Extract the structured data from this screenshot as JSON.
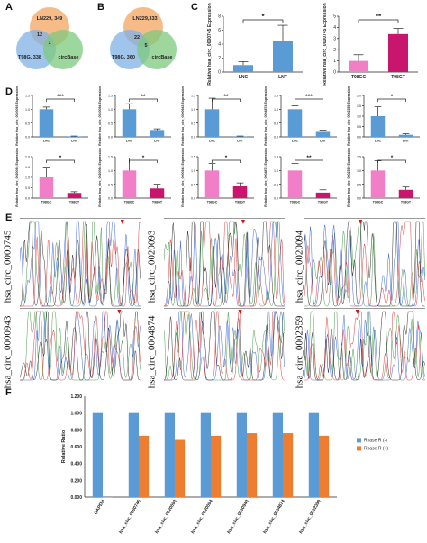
{
  "panels": {
    "A": "A",
    "B": "B",
    "C": "C",
    "D": "D",
    "E": "E",
    "F": "F"
  },
  "venn_a": {
    "top": "LN229, 349",
    "left": "T98G, 338",
    "right": "circBase",
    "n12": "12",
    "n1": "1"
  },
  "venn_b": {
    "top": "LN229,333",
    "left": "T98G, 360",
    "right": "circBase",
    "n22": "22",
    "n5": "5"
  },
  "colors": {
    "blue": "#5b9bd5",
    "pink": "#f07fc7",
    "magenta": "#c8166f",
    "orange": "#ed7d31",
    "fblue": "#5b9bd5",
    "venn_top": "#f4a460",
    "venn_left": "#7fb2e5",
    "venn_right": "#7ec97e"
  },
  "chart_data": [
    {
      "type": "bar",
      "id": "C1",
      "categories": [
        "LNC",
        "LNT"
      ],
      "values": [
        1.0,
        4.5
      ],
      "errors": [
        0.5,
        2.2
      ],
      "ylim": [
        0,
        8
      ],
      "yticks": [
        0,
        2,
        4,
        6,
        8
      ],
      "ylabel": "Relative hsa_circ_0000745 Expression",
      "sig": "*",
      "colors": [
        "#5b9bd5",
        "#5b9bd5"
      ]
    },
    {
      "type": "bar",
      "id": "C2",
      "categories": [
        "T98GC",
        "T98GT"
      ],
      "values": [
        1.0,
        3.4
      ],
      "errors": [
        0.55,
        0.5
      ],
      "ylim": [
        0,
        5
      ],
      "yticks": [
        0,
        1,
        2,
        3,
        4,
        5
      ],
      "ylabel": "Relative hsa_circ_0000745 Expression",
      "sig": "**",
      "colors": [
        "#f07fc7",
        "#c8166f"
      ]
    },
    {
      "type": "bar",
      "id": "D1",
      "categories": [
        "LNC",
        "LNT"
      ],
      "values": [
        1.0,
        0.02
      ],
      "errors": [
        0.08,
        0.01
      ],
      "ylim": [
        0,
        1.5
      ],
      "yticks": [
        0.0,
        0.5,
        1.0,
        1.5
      ],
      "ylabel": "Relative hsa_circ_0020093 Expression",
      "sig": "***",
      "colors": [
        "#5b9bd5",
        "#5b9bd5"
      ]
    },
    {
      "type": "bar",
      "id": "D2",
      "categories": [
        "LNC",
        "LNT"
      ],
      "values": [
        1.0,
        0.25
      ],
      "errors": [
        0.2,
        0.04
      ],
      "ylim": [
        0,
        1.5
      ],
      "yticks": [
        0.0,
        0.5,
        1.0,
        1.5
      ],
      "ylabel": "Relative hsa_circ_0020094 Expression",
      "sig": "**",
      "colors": [
        "#5b9bd5",
        "#5b9bd5"
      ]
    },
    {
      "type": "bar",
      "id": "D3",
      "categories": [
        "LNC",
        "LNT"
      ],
      "values": [
        1.0,
        0.02
      ],
      "errors": [
        0.4,
        0.01
      ],
      "ylim": [
        0,
        1.5
      ],
      "yticks": [
        0.0,
        0.5,
        1.0,
        1.5
      ],
      "ylabel": "Relative hsa_circ_0000943 Expression",
      "sig": "**",
      "colors": [
        "#5b9bd5",
        "#5b9bd5"
      ]
    },
    {
      "type": "bar",
      "id": "D4",
      "categories": [
        "LNC",
        "LNT"
      ],
      "values": [
        1.0,
        0.18
      ],
      "errors": [
        0.12,
        0.06
      ],
      "ylim": [
        0,
        1.5
      ],
      "yticks": [
        0.0,
        0.5,
        1.0,
        1.5
      ],
      "ylabel": "Relative hsa_circ_0004874 Expression",
      "sig": "***",
      "colors": [
        "#5b9bd5",
        "#5b9bd5"
      ]
    },
    {
      "type": "bar",
      "id": "D5",
      "categories": [
        "LNC",
        "LNT"
      ],
      "values": [
        1.0,
        0.1
      ],
      "errors": [
        0.45,
        0.05
      ],
      "ylim": [
        0,
        2.0
      ],
      "yticks": [
        0.0,
        0.5,
        1.0,
        1.5,
        2.0
      ],
      "ylabel": "Relative hsa_circ_0002359 Expression",
      "sig": "*",
      "colors": [
        "#5b9bd5",
        "#5b9bd5"
      ]
    },
    {
      "type": "bar",
      "id": "D6",
      "categories": [
        "T98GC",
        "T98GT"
      ],
      "values": [
        1.0,
        0.25
      ],
      "errors": [
        0.45,
        0.06
      ],
      "ylim": [
        0,
        2.0
      ],
      "yticks": [
        0.0,
        0.5,
        1.0,
        1.5,
        2.0
      ],
      "ylabel": "Relative hsa_circ_0020093 Expression",
      "sig": "*",
      "colors": [
        "#f07fc7",
        "#c8166f"
      ]
    },
    {
      "type": "bar",
      "id": "D7",
      "categories": [
        "T98GC",
        "T98GT"
      ],
      "values": [
        1.0,
        0.35
      ],
      "errors": [
        0.45,
        0.15
      ],
      "ylim": [
        0,
        1.5
      ],
      "yticks": [
        0.0,
        0.5,
        1.0,
        1.5
      ],
      "ylabel": "Relative hsa_circ_0020094 Expression",
      "sig": "*",
      "colors": [
        "#f07fc7",
        "#c8166f"
      ]
    },
    {
      "type": "bar",
      "id": "D8",
      "categories": [
        "T98GC",
        "T98GT"
      ],
      "values": [
        1.0,
        0.45
      ],
      "errors": [
        0.25,
        0.1
      ],
      "ylim": [
        0,
        1.5
      ],
      "yticks": [
        0.0,
        0.5,
        1.0,
        1.5
      ],
      "ylabel": "Relative hsa_circ_0000943 Expression",
      "sig": "*",
      "colors": [
        "#f07fc7",
        "#c8166f"
      ]
    },
    {
      "type": "bar",
      "id": "D9",
      "categories": [
        "T98GC",
        "T98GT"
      ],
      "values": [
        1.0,
        0.2
      ],
      "errors": [
        0.25,
        0.1
      ],
      "ylim": [
        0,
        1.5
      ],
      "yticks": [
        0.0,
        0.5,
        1.0,
        1.5
      ],
      "ylabel": "Relative hsa_circ_0004874 Expression",
      "sig": "**",
      "colors": [
        "#f07fc7",
        "#c8166f"
      ]
    },
    {
      "type": "bar",
      "id": "D10",
      "categories": [
        "T98GC",
        "T98GT"
      ],
      "values": [
        1.0,
        0.3
      ],
      "errors": [
        0.35,
        0.1
      ],
      "ylim": [
        0,
        1.5
      ],
      "yticks": [
        0.0,
        0.5,
        1.0,
        1.5
      ],
      "ylabel": "Relative hsa_circ_0002359 Expression",
      "sig": "*",
      "colors": [
        "#f07fc7",
        "#c8166f"
      ]
    },
    {
      "type": "bar",
      "id": "F",
      "categories": [
        "GAPDH",
        "hsa_circ_0000745",
        "hsa_circ_0020093",
        "hsa_circ_0020094",
        "hsa_circ_0000943",
        "hsa_circ_0004874",
        "hsa_circ_0002359"
      ],
      "series": [
        {
          "name": "Rnase R (-)",
          "values": [
            1.0,
            1.0,
            1.0,
            1.0,
            1.0,
            1.0,
            1.0
          ]
        },
        {
          "name": "Rnase R (+)",
          "values": [
            0.0,
            0.73,
            0.68,
            0.73,
            0.76,
            0.76,
            0.73
          ]
        }
      ],
      "ylim": [
        0,
        1.2
      ],
      "yticks": [
        "0.000",
        "0.200",
        "0.400",
        "0.600",
        "0.800",
        "1.000",
        "1.200"
      ],
      "ylabel": "Relative Ratio",
      "legend": "right"
    }
  ],
  "chromatograms": [
    {
      "label": "hsa_circ_0000745"
    },
    {
      "label": "hsa_circ_0020093"
    },
    {
      "label": "hsa_circ_0020094"
    },
    {
      "label": "hsa_circ_0000943"
    },
    {
      "label": "hsa_circ_0004874"
    },
    {
      "label": "hsa_circ_0002359"
    }
  ]
}
